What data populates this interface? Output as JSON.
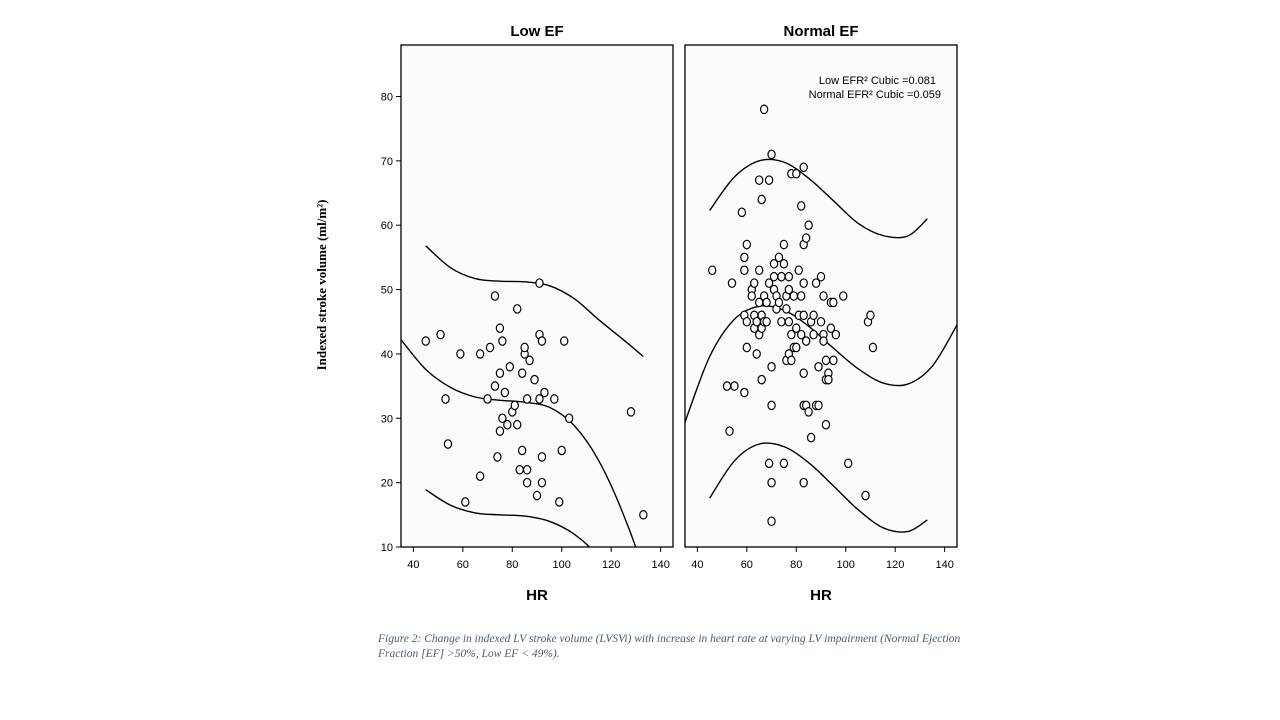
{
  "caption": "Figure 2: Change in indexed LV stroke volume (LVSVi) with increase in heart rate at varying LV impairment (Normal Ejection Fraction [EF] >50%, Low EF < 49%).",
  "chart_data": {
    "type": "scatter",
    "y_axis": {
      "label": "Indexed stroke volume (ml/m²)",
      "range": [
        10,
        88
      ],
      "ticks": [
        10,
        20,
        30,
        40,
        50,
        60,
        70,
        80
      ]
    },
    "x_axis": {
      "label": "HR",
      "range": [
        35,
        145
      ],
      "ticks": [
        40,
        60,
        80,
        100,
        120,
        140
      ]
    },
    "legend": {
      "placement": "top-right",
      "lines": [
        "Low EFR² Cubic =0.081",
        "Normal EFR² Cubic =0.059"
      ]
    },
    "panels": [
      {
        "title": "Low EF",
        "points": [
          [
            45,
            42
          ],
          [
            51,
            43
          ],
          [
            53,
            33
          ],
          [
            54,
            26
          ],
          [
            59,
            40
          ],
          [
            61,
            17
          ],
          [
            67,
            21
          ],
          [
            67,
            40
          ],
          [
            70,
            33
          ],
          [
            71,
            41
          ],
          [
            73,
            35
          ],
          [
            73,
            49
          ],
          [
            74,
            24
          ],
          [
            75,
            28
          ],
          [
            75,
            37
          ],
          [
            75,
            44
          ],
          [
            76,
            30
          ],
          [
            76,
            42
          ],
          [
            77,
            34
          ],
          [
            78,
            29
          ],
          [
            79,
            38
          ],
          [
            80,
            31
          ],
          [
            81,
            32
          ],
          [
            82,
            29
          ],
          [
            82,
            47
          ],
          [
            83,
            22
          ],
          [
            84,
            25
          ],
          [
            84,
            37
          ],
          [
            85,
            40
          ],
          [
            85,
            41
          ],
          [
            86,
            20
          ],
          [
            86,
            22
          ],
          [
            86,
            33
          ],
          [
            87,
            39
          ],
          [
            89,
            36
          ],
          [
            90,
            18
          ],
          [
            91,
            51
          ],
          [
            91,
            33
          ],
          [
            91,
            43
          ],
          [
            92,
            20
          ],
          [
            92,
            24
          ],
          [
            92,
            42
          ],
          [
            93,
            34
          ],
          [
            97,
            33
          ],
          [
            99,
            17
          ],
          [
            100,
            25
          ],
          [
            101,
            42
          ],
          [
            103,
            30
          ],
          [
            128,
            31
          ],
          [
            133,
            15
          ]
        ],
        "fit_mean": [
          [
            35,
            42.2
          ],
          [
            45,
            37.6
          ],
          [
            55,
            34.8
          ],
          [
            65,
            33.3
          ],
          [
            75,
            32.8
          ],
          [
            85,
            32.5
          ],
          [
            95,
            31.7
          ],
          [
            105,
            28.9
          ],
          [
            115,
            23.4
          ],
          [
            125,
            15.0
          ],
          [
            135,
            4.1
          ],
          [
            145,
            -10.9
          ]
        ],
        "fit_upper": [
          [
            45,
            56.8
          ],
          [
            55,
            53.4
          ],
          [
            65,
            51.7
          ],
          [
            75,
            51.3
          ],
          [
            85,
            51.2
          ],
          [
            95,
            50.6
          ],
          [
            105,
            48.6
          ],
          [
            115,
            45.3
          ],
          [
            125,
            42.2
          ],
          [
            133,
            39.6
          ]
        ],
        "fit_lower": [
          [
            45,
            18.9
          ],
          [
            55,
            16.5
          ],
          [
            65,
            15.3
          ],
          [
            75,
            15.0
          ],
          [
            85,
            14.8
          ],
          [
            95,
            14.0
          ],
          [
            105,
            12.0
          ],
          [
            115,
            8.5
          ],
          [
            125,
            3.0
          ],
          [
            133,
            -3.0
          ]
        ]
      },
      {
        "title": "Normal EF",
        "points": [
          [
            46,
            53
          ],
          [
            52,
            35
          ],
          [
            53,
            28
          ],
          [
            54,
            51
          ],
          [
            55,
            35
          ],
          [
            58,
            62
          ],
          [
            59,
            34
          ],
          [
            59,
            46
          ],
          [
            59,
            53
          ],
          [
            59,
            55
          ],
          [
            60,
            41
          ],
          [
            60,
            45
          ],
          [
            60,
            57
          ],
          [
            62,
            50
          ],
          [
            62,
            49
          ],
          [
            63,
            44
          ],
          [
            63,
            46
          ],
          [
            63,
            51
          ],
          [
            64,
            40
          ],
          [
            64,
            45
          ],
          [
            65,
            43
          ],
          [
            65,
            48
          ],
          [
            65,
            53
          ],
          [
            65,
            67
          ],
          [
            66,
            36
          ],
          [
            66,
            44
          ],
          [
            66,
            46
          ],
          [
            66,
            64
          ],
          [
            67,
            45
          ],
          [
            67,
            49
          ],
          [
            67,
            78
          ],
          [
            68,
            45
          ],
          [
            68,
            48
          ],
          [
            69,
            23
          ],
          [
            69,
            51
          ],
          [
            69,
            67
          ],
          [
            70,
            71
          ],
          [
            70,
            14
          ],
          [
            70,
            20
          ],
          [
            70,
            32
          ],
          [
            70,
            38
          ],
          [
            71,
            50
          ],
          [
            71,
            52
          ],
          [
            71,
            54
          ],
          [
            72,
            47
          ],
          [
            72,
            49
          ],
          [
            73,
            48
          ],
          [
            73,
            55
          ],
          [
            74,
            45
          ],
          [
            74,
            52
          ],
          [
            74,
            52
          ],
          [
            75,
            23
          ],
          [
            75,
            54
          ],
          [
            75,
            57
          ],
          [
            76,
            39
          ],
          [
            76,
            47
          ],
          [
            76,
            49
          ],
          [
            77,
            40
          ],
          [
            77,
            45
          ],
          [
            77,
            50
          ],
          [
            77,
            52
          ],
          [
            78,
            43
          ],
          [
            78,
            68
          ],
          [
            78,
            39
          ],
          [
            79,
            41
          ],
          [
            79,
            49
          ],
          [
            80,
            44
          ],
          [
            80,
            41
          ],
          [
            80,
            68
          ],
          [
            81,
            46
          ],
          [
            81,
            53
          ],
          [
            82,
            43
          ],
          [
            82,
            49
          ],
          [
            82,
            63
          ],
          [
            83,
            20
          ],
          [
            83,
            32
          ],
          [
            83,
            37
          ],
          [
            83,
            46
          ],
          [
            83,
            51
          ],
          [
            83,
            57
          ],
          [
            83,
            69
          ],
          [
            84,
            32
          ],
          [
            84,
            42
          ],
          [
            84,
            58
          ],
          [
            85,
            60
          ],
          [
            85,
            31
          ],
          [
            86,
            45
          ],
          [
            86,
            27
          ],
          [
            87,
            46
          ],
          [
            87,
            43
          ],
          [
            88,
            32
          ],
          [
            88,
            51
          ],
          [
            89,
            32
          ],
          [
            89,
            38
          ],
          [
            90,
            45
          ],
          [
            90,
            52
          ],
          [
            91,
            49
          ],
          [
            91,
            43
          ],
          [
            91,
            42
          ],
          [
            92,
            36
          ],
          [
            92,
            39
          ],
          [
            92,
            29
          ],
          [
            93,
            37
          ],
          [
            93,
            36
          ],
          [
            94,
            44
          ],
          [
            94,
            48
          ],
          [
            95,
            39
          ],
          [
            95,
            48
          ],
          [
            96,
            43
          ],
          [
            99,
            49
          ],
          [
            101,
            23
          ],
          [
            108,
            18
          ],
          [
            109,
            45
          ],
          [
            110,
            46
          ],
          [
            111,
            41
          ]
        ],
        "fit_mean": [
          [
            35,
            29.4
          ],
          [
            45,
            39.6
          ],
          [
            55,
            45.4
          ],
          [
            65,
            47.4
          ],
          [
            75,
            46.8
          ],
          [
            85,
            44.3
          ],
          [
            95,
            40.9
          ],
          [
            105,
            37.7
          ],
          [
            115,
            35.5
          ],
          [
            125,
            35.3
          ],
          [
            135,
            38.1
          ],
          [
            145,
            44.5
          ]
        ],
        "fit_upper": [
          [
            45,
            62.3
          ],
          [
            55,
            67.5
          ],
          [
            65,
            70.0
          ],
          [
            75,
            69.8
          ],
          [
            85,
            67.3
          ],
          [
            95,
            63.8
          ],
          [
            105,
            60.3
          ],
          [
            115,
            58.4
          ],
          [
            125,
            58.3
          ],
          [
            133,
            61.0
          ]
        ],
        "fit_lower": [
          [
            45,
            17.6
          ],
          [
            55,
            23.4
          ],
          [
            65,
            26.0
          ],
          [
            75,
            25.6
          ],
          [
            85,
            23.1
          ],
          [
            95,
            19.5
          ],
          [
            105,
            15.8
          ],
          [
            115,
            13.0
          ],
          [
            125,
            12.4
          ],
          [
            133,
            14.2
          ]
        ]
      }
    ]
  }
}
